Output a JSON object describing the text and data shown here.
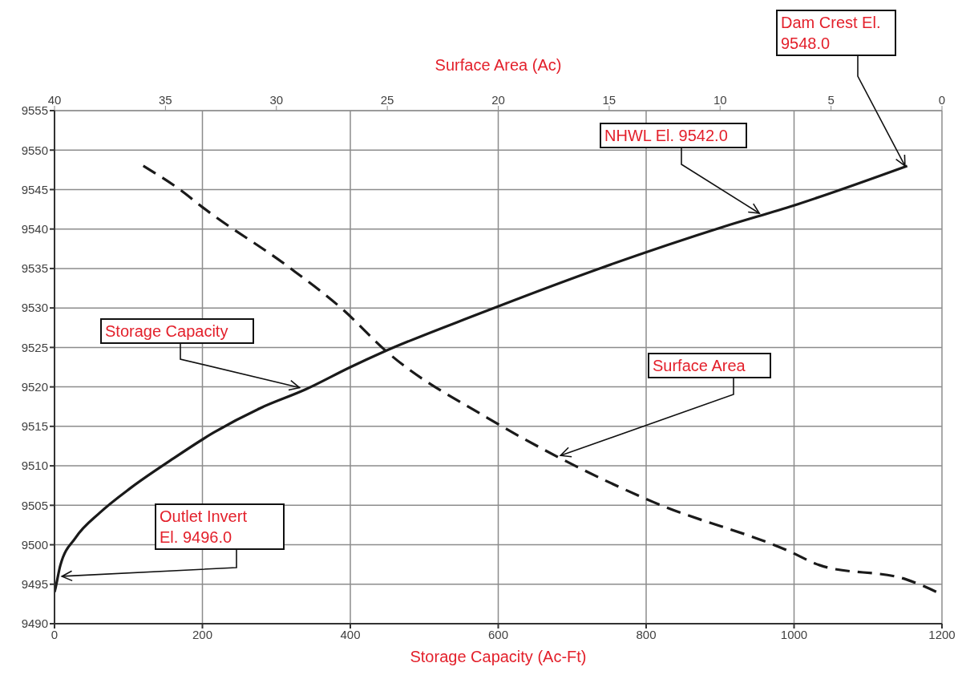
{
  "chart_data": {
    "type": "line",
    "xlabel": "Storage Capacity (Ac-Ft)",
    "x2label": "Surface Area (Ac)",
    "xlim": [
      0,
      1200
    ],
    "xticks": [
      0,
      200,
      400,
      600,
      800,
      1000,
      1200
    ],
    "x2lim": [
      40,
      0
    ],
    "x2ticks": [
      40,
      35,
      30,
      25,
      20,
      15,
      10,
      5,
      0
    ],
    "ylim": [
      9490,
      9555
    ],
    "yticks": [
      9490,
      9495,
      9500,
      9505,
      9510,
      9515,
      9520,
      9525,
      9530,
      9535,
      9540,
      9545,
      9550,
      9555
    ],
    "grid": true,
    "marker": "none",
    "series": [
      {
        "name": "Storage Capacity",
        "color": "#1a1a1a",
        "line_style": "solid",
        "x": [
          0,
          0.8,
          7.9,
          28.6,
          61.8,
          103,
          157,
          215,
          278,
          340,
          400,
          444,
          575,
          740,
          905,
          1000,
          1153
        ],
        "values": [
          9494,
          9494.3,
          9497.4,
          9500.9,
          9504.1,
          9507.2,
          9510.7,
          9514.2,
          9517.3,
          9519.7,
          9522.5,
          9524.4,
          9529.3,
          9535.1,
          9540.3,
          9543,
          9548
        ]
      },
      {
        "name": "Surface Area",
        "color": "#1a1a1a",
        "line_style": "dashed",
        "axis": "x2",
        "x": [
          36,
          34.3,
          33.3,
          29.5,
          27,
          25,
          20.5,
          17.3,
          13,
          6.9,
          5.5,
          1.6,
          0
        ],
        "values": [
          9548,
          9544.9,
          9542.7,
          9535.3,
          9529.8,
          9524.4,
          9516.1,
          9511.1,
          9505.4,
          9499.2,
          9497.4,
          9495.6,
          9493.7
        ]
      }
    ],
    "annotations": [
      {
        "text": "Dam Crest El. 9548.0",
        "x": 1150,
        "y": 9548
      },
      {
        "text": "NHWL El. 9542.0",
        "x": 953,
        "y": 9542
      },
      {
        "text": "Outlet Invert El. 9496.0",
        "x": 10,
        "y": 9496
      }
    ]
  }
}
